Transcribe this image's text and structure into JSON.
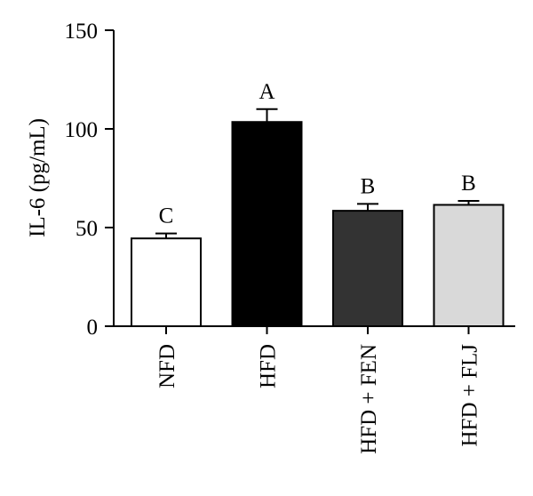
{
  "chart_data": {
    "type": "bar",
    "categories": [
      "NFD",
      "HFD",
      "HFD + FEN",
      "HFD + FLJ"
    ],
    "values": [
      44.5,
      103.5,
      58.5,
      61.5
    ],
    "errors": [
      2.5,
      6.5,
      3.5,
      2.0
    ],
    "significance_labels": [
      "C",
      "A",
      "B",
      "B"
    ],
    "bar_colors": [
      "#ffffff",
      "#000000",
      "#333333",
      "#d9d9d9"
    ],
    "title": "",
    "xlabel": "",
    "ylabel": "IL-6 (pg/mL)",
    "ylim": [
      0,
      150
    ],
    "yticks": [
      0,
      50,
      100,
      150
    ],
    "grid": false,
    "legend": "none"
  }
}
